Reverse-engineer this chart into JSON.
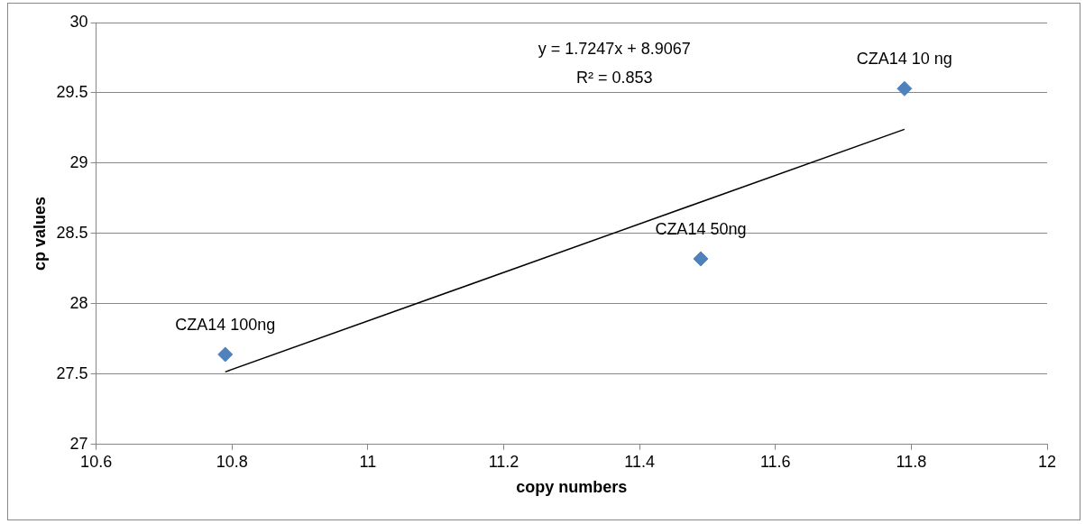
{
  "chart_data": {
    "type": "scatter",
    "xlabel": "copy numbers",
    "ylabel": "cp values",
    "series": [
      {
        "type": "scatter",
        "color": "#4f81bd",
        "marker": "diamond",
        "x": [
          10.79,
          11.49,
          11.79
        ],
        "values": [
          27.64,
          28.32,
          29.53
        ]
      },
      {
        "type": "line",
        "color": "#000000",
        "marker": "none",
        "x": [
          10.79,
          11.79
        ],
        "values": [
          27.516,
          29.241
        ]
      }
    ],
    "xlim": [
      10.6,
      12
    ],
    "xticks": [
      10.6,
      10.8,
      11,
      11.2,
      11.4,
      11.6,
      11.8,
      12
    ],
    "ylim": [
      27,
      30
    ],
    "yticks": [
      27,
      27.5,
      28,
      28.5,
      29,
      29.5,
      30
    ],
    "grid": "y",
    "legend": false,
    "annotations": [
      "y = 1.7247x + 8.9067",
      "R² = 0.853",
      {
        "text": "CZA14 100ng",
        "x": 10.79,
        "y": 27.64
      },
      {
        "text": "CZA14 50ng",
        "x": 11.49,
        "y": 28.32
      },
      {
        "text": "CZA14 10 ng",
        "x": 11.79,
        "y": 29.53
      }
    ]
  }
}
